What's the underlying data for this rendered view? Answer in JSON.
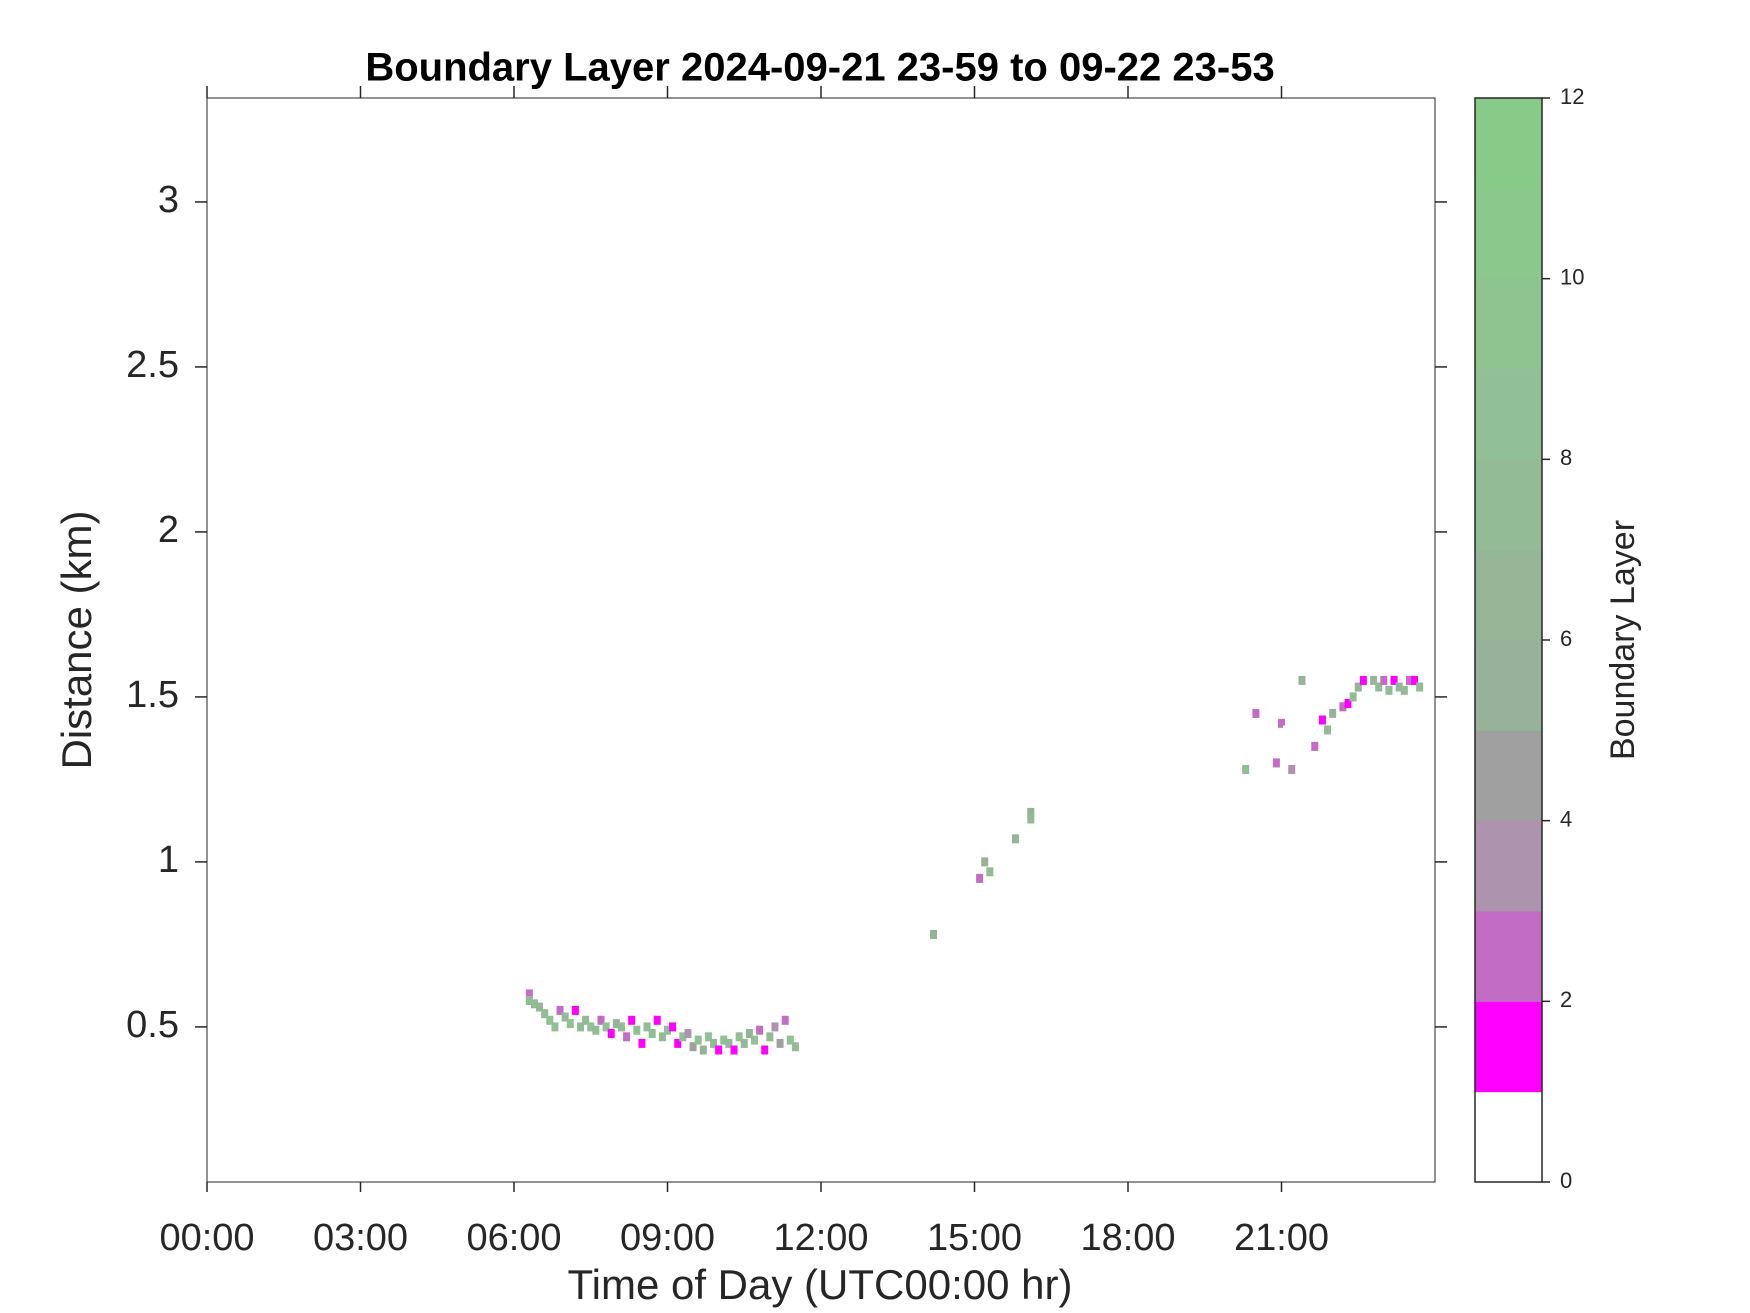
{
  "chart_data": {
    "type": "heatmap",
    "title": "Boundary Layer 2024-09-21 23-59 to 09-22 23-53",
    "x_label": "Time of Day (UTC00:00 hr)",
    "y_label": "Distance (km)",
    "xlim": [
      0,
      24
    ],
    "xticks": [
      {
        "value": 0,
        "label": "00:00"
      },
      {
        "value": 3,
        "label": "03:00"
      },
      {
        "value": 6,
        "label": "06:00"
      },
      {
        "value": 9,
        "label": "09:00"
      },
      {
        "value": 12,
        "label": "12:00"
      },
      {
        "value": 15,
        "label": "15:00"
      },
      {
        "value": 18,
        "label": "18:00"
      },
      {
        "value": 21,
        "label": "21:00"
      }
    ],
    "ylim": [
      0.03,
      3.315
    ],
    "yticks": [
      0.5,
      1,
      1.5,
      2,
      2.5,
      3
    ],
    "colorbar": {
      "label": "Boundary Layer",
      "lim": [
        0,
        12
      ],
      "ticks": [
        0,
        2,
        4,
        6,
        8,
        10,
        12
      ],
      "colors": [
        "#ffffff",
        "#ff00ff",
        "#c26cc6",
        "#ad93ad",
        "#9fa09f",
        "#98b29a",
        "#96b797",
        "#93bb95",
        "#90c093",
        "#8dc490",
        "#8ac88c",
        "#88cb88"
      ]
    },
    "points": [
      [
        6.3,
        0.6,
        3
      ],
      [
        6.3,
        0.58,
        8
      ],
      [
        6.4,
        0.57,
        8
      ],
      [
        6.5,
        0.56,
        7
      ],
      [
        6.6,
        0.54,
        8
      ],
      [
        6.7,
        0.52,
        9
      ],
      [
        6.8,
        0.5,
        9
      ],
      [
        6.9,
        0.55,
        3
      ],
      [
        7.0,
        0.53,
        8
      ],
      [
        7.1,
        0.51,
        9
      ],
      [
        7.2,
        0.55,
        2
      ],
      [
        7.3,
        0.5,
        8
      ],
      [
        7.4,
        0.52,
        7
      ],
      [
        7.5,
        0.5,
        9
      ],
      [
        7.6,
        0.49,
        8
      ],
      [
        7.7,
        0.52,
        3
      ],
      [
        7.8,
        0.5,
        9
      ],
      [
        7.9,
        0.48,
        2
      ],
      [
        8.0,
        0.51,
        6
      ],
      [
        8.1,
        0.5,
        8
      ],
      [
        8.2,
        0.47,
        3
      ],
      [
        8.3,
        0.52,
        2
      ],
      [
        8.4,
        0.49,
        9
      ],
      [
        8.5,
        0.45,
        2
      ],
      [
        8.6,
        0.5,
        8
      ],
      [
        8.7,
        0.48,
        9
      ],
      [
        8.8,
        0.52,
        2
      ],
      [
        8.9,
        0.47,
        8
      ],
      [
        9.0,
        0.49,
        9
      ],
      [
        9.1,
        0.5,
        2
      ],
      [
        9.2,
        0.45,
        2
      ],
      [
        9.3,
        0.47,
        9
      ],
      [
        9.4,
        0.48,
        4
      ],
      [
        9.5,
        0.44,
        5
      ],
      [
        9.6,
        0.46,
        9
      ],
      [
        9.7,
        0.43,
        6
      ],
      [
        9.8,
        0.47,
        9
      ],
      [
        9.9,
        0.45,
        8
      ],
      [
        10.0,
        0.43,
        2
      ],
      [
        10.1,
        0.46,
        9
      ],
      [
        10.2,
        0.45,
        8
      ],
      [
        10.3,
        0.43,
        2
      ],
      [
        10.4,
        0.47,
        9
      ],
      [
        10.5,
        0.45,
        7
      ],
      [
        10.6,
        0.48,
        6
      ],
      [
        10.7,
        0.46,
        9
      ],
      [
        10.8,
        0.49,
        3
      ],
      [
        10.9,
        0.43,
        2
      ],
      [
        11.0,
        0.47,
        8
      ],
      [
        11.1,
        0.5,
        4
      ],
      [
        11.2,
        0.45,
        5
      ],
      [
        11.3,
        0.52,
        3
      ],
      [
        11.4,
        0.46,
        9
      ],
      [
        11.5,
        0.44,
        8
      ],
      [
        14.2,
        0.8,
        1
      ],
      [
        14.2,
        0.78,
        6
      ],
      [
        15.1,
        0.95,
        3
      ],
      [
        15.2,
        1.0,
        6
      ],
      [
        15.3,
        0.97,
        8
      ],
      [
        15.8,
        1.07,
        6
      ],
      [
        16.1,
        1.15,
        6
      ],
      [
        16.1,
        1.13,
        8
      ],
      [
        20.3,
        1.28,
        8
      ],
      [
        20.5,
        1.45,
        3
      ],
      [
        20.7,
        1.35,
        1
      ],
      [
        20.8,
        1.28,
        1
      ],
      [
        20.9,
        1.3,
        3
      ],
      [
        21.0,
        1.42,
        3
      ],
      [
        21.1,
        1.4,
        1
      ],
      [
        21.2,
        1.28,
        4
      ],
      [
        21.4,
        1.55,
        6
      ],
      [
        21.6,
        1.4,
        1
      ],
      [
        21.65,
        1.35,
        3
      ],
      [
        21.8,
        1.43,
        2
      ],
      [
        21.9,
        1.4,
        8
      ],
      [
        22.0,
        1.45,
        6
      ],
      [
        22.2,
        1.47,
        3
      ],
      [
        22.3,
        1.48,
        2
      ],
      [
        22.4,
        1.5,
        8
      ],
      [
        22.5,
        1.53,
        6
      ],
      [
        22.6,
        1.55,
        2
      ],
      [
        22.7,
        1.58,
        1
      ],
      [
        22.8,
        1.55,
        7
      ],
      [
        22.9,
        1.53,
        8
      ],
      [
        23.0,
        1.55,
        3
      ],
      [
        23.1,
        1.52,
        8
      ],
      [
        23.2,
        1.55,
        2
      ],
      [
        23.3,
        1.53,
        7
      ],
      [
        23.4,
        1.52,
        8
      ],
      [
        23.5,
        1.55,
        3
      ],
      [
        23.6,
        1.55,
        2
      ],
      [
        23.7,
        1.53,
        8
      ]
    ]
  }
}
